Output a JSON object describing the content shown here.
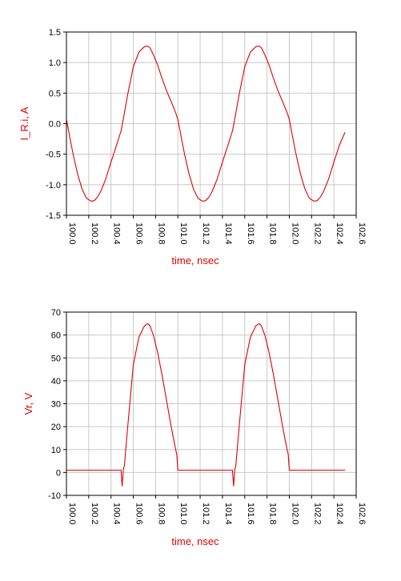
{
  "colors": {
    "trace": "#e00000",
    "axis_label": "#e00000",
    "tick_label": "#000000",
    "grid": "#c8c8c8",
    "frame": "#000000"
  },
  "chart_data": [
    {
      "type": "line",
      "title": "",
      "xlabel": "time, nsec",
      "ylabel": "I_R.i, A",
      "xlim": [
        100.0,
        102.6
      ],
      "ylim": [
        -1.5,
        1.5
      ],
      "x_ticks": [
        "100.0",
        "100.2",
        "100.4",
        "100.6",
        "100.8",
        "101.0",
        "101.2",
        "101.4",
        "101.6",
        "101.8",
        "102.0",
        "102.2",
        "102.4",
        "102.6"
      ],
      "y_ticks": [
        "1.5",
        "1.0",
        "0.5",
        "0.0",
        "-0.5",
        "-1.0",
        "-1.5"
      ],
      "grid": true,
      "series": [
        {
          "x": [
            100.0,
            100.03,
            100.06,
            100.1,
            100.14,
            100.18,
            100.22,
            100.25,
            100.28,
            100.31,
            100.35,
            100.4,
            100.45,
            100.49,
            100.51,
            100.55,
            100.6,
            100.65,
            100.7,
            100.73,
            100.75,
            100.78,
            100.82,
            100.86,
            100.9,
            100.94,
            100.98,
            101.0,
            101.03,
            101.06,
            101.1,
            101.14,
            101.18,
            101.22,
            101.25,
            101.28,
            101.31,
            101.35,
            101.4,
            101.45,
            101.49,
            101.51,
            101.55,
            101.6,
            101.65,
            101.7,
            101.73,
            101.75,
            101.78,
            101.82,
            101.86,
            101.9,
            101.94,
            101.98,
            102.0,
            102.03,
            102.06,
            102.1,
            102.14,
            102.18,
            102.22,
            102.25,
            102.28,
            102.31,
            102.35,
            102.4,
            102.45,
            102.5
          ],
          "values": [
            0.07,
            -0.22,
            -0.5,
            -0.82,
            -1.07,
            -1.22,
            -1.27,
            -1.26,
            -1.2,
            -1.1,
            -0.92,
            -0.63,
            -0.35,
            -0.12,
            0.07,
            0.48,
            0.93,
            1.17,
            1.26,
            1.27,
            1.24,
            1.13,
            0.95,
            0.73,
            0.53,
            0.36,
            0.18,
            0.07,
            -0.22,
            -0.5,
            -0.82,
            -1.07,
            -1.22,
            -1.27,
            -1.26,
            -1.2,
            -1.1,
            -0.92,
            -0.63,
            -0.35,
            -0.12,
            0.07,
            0.48,
            0.93,
            1.17,
            1.26,
            1.27,
            1.24,
            1.13,
            0.95,
            0.73,
            0.53,
            0.36,
            0.18,
            0.07,
            -0.22,
            -0.5,
            -0.82,
            -1.07,
            -1.22,
            -1.27,
            -1.26,
            -1.2,
            -1.1,
            -0.92,
            -0.63,
            -0.35,
            -0.14
          ]
        }
      ]
    },
    {
      "type": "line",
      "title": "",
      "xlabel": "time, nsec",
      "ylabel": "Vr, V",
      "xlim": [
        100.0,
        102.6
      ],
      "ylim": [
        -10,
        70
      ],
      "x_ticks": [
        "100.0",
        "100.2",
        "100.4",
        "100.6",
        "100.8",
        "101.0",
        "101.2",
        "101.4",
        "101.6",
        "101.8",
        "102.0",
        "102.2",
        "102.4",
        "102.6"
      ],
      "y_ticks": [
        "70",
        "60",
        "50",
        "40",
        "30",
        "20",
        "10",
        "0",
        "-10"
      ],
      "grid": true,
      "series": [
        {
          "x": [
            100.0,
            100.49,
            100.5,
            100.51,
            100.52,
            100.55,
            100.6,
            100.65,
            100.7,
            100.73,
            100.75,
            100.78,
            100.82,
            100.86,
            100.9,
            100.94,
            100.98,
            100.99,
            101.0,
            101.49,
            101.5,
            101.51,
            101.52,
            101.55,
            101.6,
            101.65,
            101.7,
            101.73,
            101.75,
            101.78,
            101.82,
            101.86,
            101.9,
            101.94,
            101.98,
            101.99,
            102.0,
            102.5
          ],
          "values": [
            1,
            1,
            -6,
            1,
            3,
            20,
            47,
            59,
            64,
            65,
            64,
            60,
            52,
            42,
            31,
            20,
            10,
            8,
            1,
            1,
            -6,
            1,
            3,
            20,
            47,
            59,
            64,
            65,
            64,
            60,
            52,
            42,
            31,
            20,
            10,
            8,
            1,
            1
          ]
        }
      ]
    }
  ]
}
